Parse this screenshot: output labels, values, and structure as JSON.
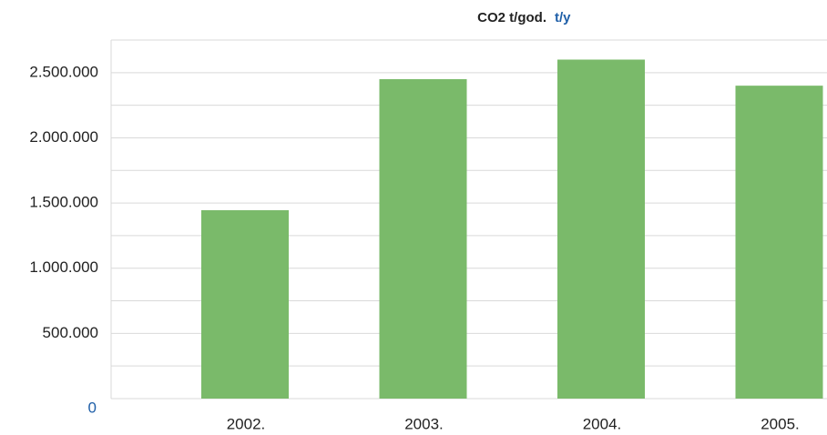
{
  "chart_data": {
    "type": "bar",
    "title": "CO2 t/god.",
    "unit": "t/y",
    "categories": [
      "2002.",
      "2003.",
      "2004.",
      "2005."
    ],
    "values": [
      1445000,
      2450000,
      2600000,
      2400000
    ],
    "color": "#7aba6a",
    "ylim": [
      0,
      2750000
    ],
    "yticks": [
      0,
      {
        "value": 500000,
        "label": "500.000"
      },
      {
        "value": 1000000,
        "label": "1.000.000"
      },
      {
        "value": 1500000,
        "label": "1.500.000"
      },
      {
        "value": 2000000,
        "label": "2.000.000"
      },
      {
        "value": 2500000,
        "label": "2.500.000"
      }
    ],
    "minor_yticks": [
      250000,
      750000,
      1250000,
      1750000,
      2250000,
      2750000
    ],
    "grid": true
  }
}
